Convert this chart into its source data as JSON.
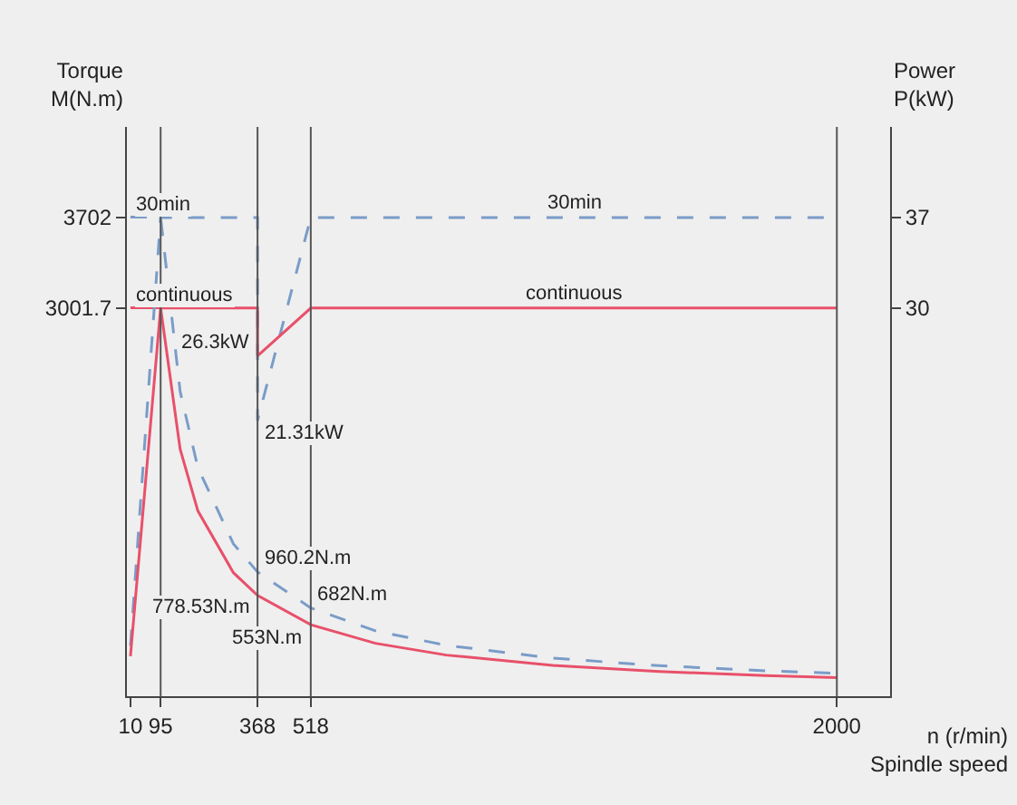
{
  "chart_data": {
    "type": "line",
    "xlabel": "n (r/min)\nSpindle speed",
    "ylabel": "Torque\nM(N.m)",
    "y2label": "Power\nP(kW)",
    "xlim": [
      0,
      2150
    ],
    "xticks": [
      10,
      95,
      368,
      518,
      2000
    ],
    "ylim": [
      0,
      4400
    ],
    "yticks": [
      3001.7,
      3702
    ],
    "y2lim": [
      0,
      44
    ],
    "y2ticks": [
      30,
      37
    ],
    "legend": false,
    "grid": false,
    "marker": "none",
    "ref_lines": [
      {
        "axis": "x",
        "value": 95,
        "color": "#555555"
      },
      {
        "axis": "x",
        "value": 368,
        "color": "#555555"
      },
      {
        "axis": "x",
        "value": 518,
        "color": "#555555"
      },
      {
        "axis": "x",
        "value": 2000,
        "color": "#555555"
      }
    ],
    "series": [
      {
        "name": "30min",
        "color": "#7a9cc8",
        "line_style": "dashed",
        "x": [
          10,
          95,
          150,
          200,
          300,
          368,
          518,
          700,
          900,
          1200,
          1500,
          1800,
          2000
        ],
        "values": [
          3702,
          3702,
          2355,
          1766,
          1178,
          960.2,
          682,
          505,
          393,
          294,
          236,
          196,
          177
        ],
        "value_labels": [
          null,
          null,
          null,
          null,
          null,
          "960.2N.m",
          "682N.m",
          null,
          null,
          null,
          null,
          null,
          null
        ]
      },
      {
        "name": "continuous",
        "color": "#e8506a",
        "line_style": "solid",
        "x": [
          10,
          95,
          150,
          200,
          300,
          368,
          518,
          700,
          900,
          1200,
          1500,
          1800,
          2000
        ],
        "values": [
          3001.7,
          3001.7,
          1910,
          1432,
          955,
          778.53,
          553,
          409,
          318,
          239,
          191,
          159,
          143
        ],
        "value_labels": [
          null,
          null,
          null,
          null,
          null,
          "778.53N.m",
          "553N.m",
          null,
          null,
          null,
          null,
          null,
          null
        ]
      },
      {
        "name": "30min",
        "axis": "y2",
        "color": "#7a9cc8",
        "line_style": "dashed",
        "x": [
          10,
          95,
          368,
          368,
          518,
          2000
        ],
        "values": [
          3.9,
          37,
          37,
          21.31,
          37,
          37
        ],
        "value_labels": [
          null,
          null,
          null,
          "21.31kW",
          null,
          null
        ]
      },
      {
        "name": "continuous",
        "axis": "y2",
        "color": "#e8506a",
        "line_style": "solid",
        "x": [
          10,
          95,
          368,
          368,
          518,
          2000
        ],
        "values": [
          3.1,
          30,
          30,
          26.3,
          30,
          30
        ],
        "value_labels": [
          null,
          null,
          null,
          "26.3kW",
          null,
          null
        ]
      }
    ]
  }
}
